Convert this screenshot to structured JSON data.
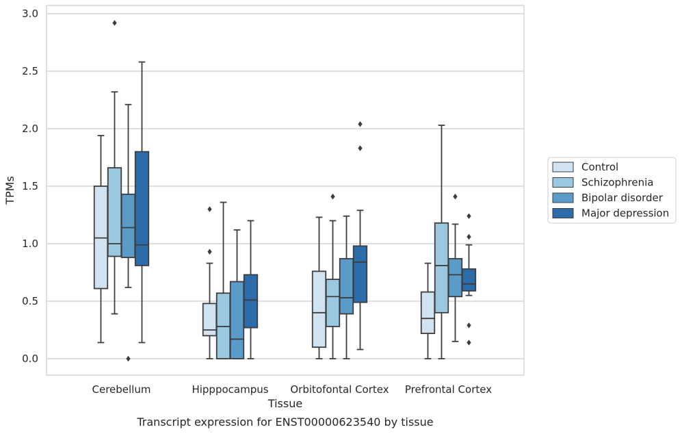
{
  "chart_data": {
    "type": "box",
    "title": "",
    "caption": "Transcript expression for ENST00000623540 by tissue",
    "xlabel": "Tissue",
    "ylabel": "TPMs",
    "ylim": [
      -0.14,
      3.07
    ],
    "yticks": [
      "0.0",
      "0.5",
      "1.0",
      "1.5",
      "2.0",
      "2.5",
      "3.0"
    ],
    "ytick_values": [
      0,
      0.5,
      1.0,
      1.5,
      2.0,
      2.5,
      3.0
    ],
    "grid": true,
    "legend_placement": "right",
    "categories": [
      "Cerebellum",
      "Hipppocampus",
      "Orbitofontal Cortex",
      "Prefrontal Cortex"
    ],
    "series": [
      {
        "name": "Control",
        "color": "#d1e2f1",
        "boxes": [
          {
            "whislo": 0.14,
            "q1": 0.61,
            "med": 1.05,
            "q3": 1.5,
            "whishi": 1.94,
            "fliers": []
          },
          {
            "whislo": 0.0,
            "q1": 0.2,
            "med": 0.25,
            "q3": 0.48,
            "whishi": 0.83,
            "fliers": [
              0.93,
              1.3
            ]
          },
          {
            "whislo": 0.0,
            "q1": 0.1,
            "med": 0.4,
            "q3": 0.76,
            "whishi": 1.23,
            "fliers": []
          },
          {
            "whislo": 0.0,
            "q1": 0.22,
            "med": 0.35,
            "q3": 0.58,
            "whishi": 0.83,
            "fliers": []
          }
        ]
      },
      {
        "name": "Schizophrenia",
        "color": "#9ac8e0",
        "boxes": [
          {
            "whislo": 0.39,
            "q1": 0.89,
            "med": 1.0,
            "q3": 1.66,
            "whishi": 2.32,
            "fliers": [
              2.92
            ]
          },
          {
            "whislo": 0.0,
            "q1": 0.0,
            "med": 0.28,
            "q3": 0.57,
            "whishi": 1.36,
            "fliers": []
          },
          {
            "whislo": 0.0,
            "q1": 0.28,
            "med": 0.54,
            "q3": 0.69,
            "whishi": 1.2,
            "fliers": [
              1.41
            ]
          },
          {
            "whislo": 0.0,
            "q1": 0.4,
            "med": 0.81,
            "q3": 1.18,
            "whishi": 2.03,
            "fliers": []
          }
        ]
      },
      {
        "name": "Bipolar disorder",
        "color": "#5a9bc9",
        "boxes": [
          {
            "whislo": 0.62,
            "q1": 0.88,
            "med": 1.14,
            "q3": 1.43,
            "whishi": 2.21,
            "fliers": [
              0.0
            ]
          },
          {
            "whislo": 0.0,
            "q1": 0.0,
            "med": 0.17,
            "q3": 0.67,
            "whishi": 1.12,
            "fliers": []
          },
          {
            "whislo": 0.0,
            "q1": 0.39,
            "med": 0.53,
            "q3": 0.87,
            "whishi": 1.24,
            "fliers": []
          },
          {
            "whislo": 0.15,
            "q1": 0.54,
            "med": 0.73,
            "q3": 0.87,
            "whishi": 1.17,
            "fliers": [
              1.41
            ]
          }
        ]
      },
      {
        "name": "Major depression",
        "color": "#2b6ca9",
        "boxes": [
          {
            "whislo": 0.14,
            "q1": 0.81,
            "med": 0.99,
            "q3": 1.8,
            "whishi": 2.58,
            "fliers": []
          },
          {
            "whislo": 0.0,
            "q1": 0.27,
            "med": 0.51,
            "q3": 0.73,
            "whishi": 1.2,
            "fliers": []
          },
          {
            "whislo": 0.08,
            "q1": 0.49,
            "med": 0.84,
            "q3": 0.98,
            "whishi": 1.29,
            "fliers": [
              1.83,
              2.04
            ]
          },
          {
            "whislo": 0.55,
            "q1": 0.59,
            "med": 0.65,
            "q3": 0.78,
            "whishi": 0.99,
            "fliers": [
              0.14,
              0.29,
              1.06,
              1.24
            ]
          }
        ]
      }
    ]
  }
}
